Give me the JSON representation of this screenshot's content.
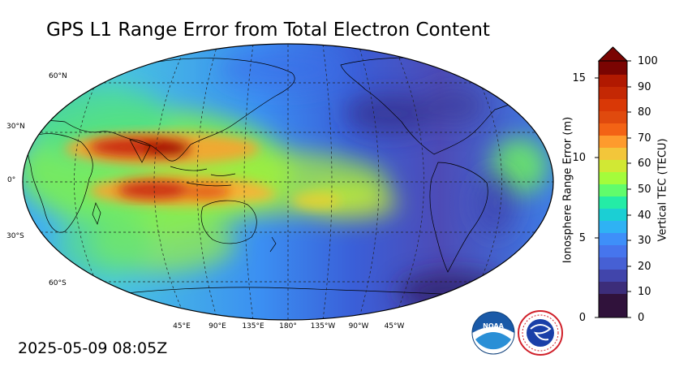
{
  "title": "GPS L1 Range Error from Total Electron Content",
  "timestamp": "2025-05-09 08:05Z",
  "map": {
    "lat_labels": [
      "60°N",
      "30°N",
      "0°",
      "30°S",
      "60°S"
    ],
    "lon_labels": [
      "45°E",
      "90°E",
      "135°E",
      "180°",
      "135°W",
      "90°W",
      "45°W"
    ]
  },
  "colorbar": {
    "left_label": "Ionosphere Range Error (m)",
    "right_label": "Vertical TEC (TECU)",
    "left_ticks": [
      "0",
      "5",
      "10",
      "15"
    ],
    "right_ticks": [
      "0",
      "10",
      "20",
      "30",
      "40",
      "50",
      "60",
      "70",
      "80",
      "90",
      "100"
    ],
    "tec_range": [
      0,
      100
    ],
    "range_error_range": [
      0,
      16.2
    ],
    "colormap": [
      "#30123b",
      "#4145ab",
      "#4675ed",
      "#39a2fc",
      "#1bcfd4",
      "#24eca6",
      "#61fc6c",
      "#a4fc3b",
      "#d1e834",
      "#f3c63a",
      "#fe9b2d",
      "#f36315",
      "#d93806",
      "#b11901",
      "#7a0402"
    ],
    "extend": "max"
  },
  "logos": {
    "noaa_text": "NOAA",
    "nws_text": "NATIONAL WEATHER SERVICE"
  }
}
